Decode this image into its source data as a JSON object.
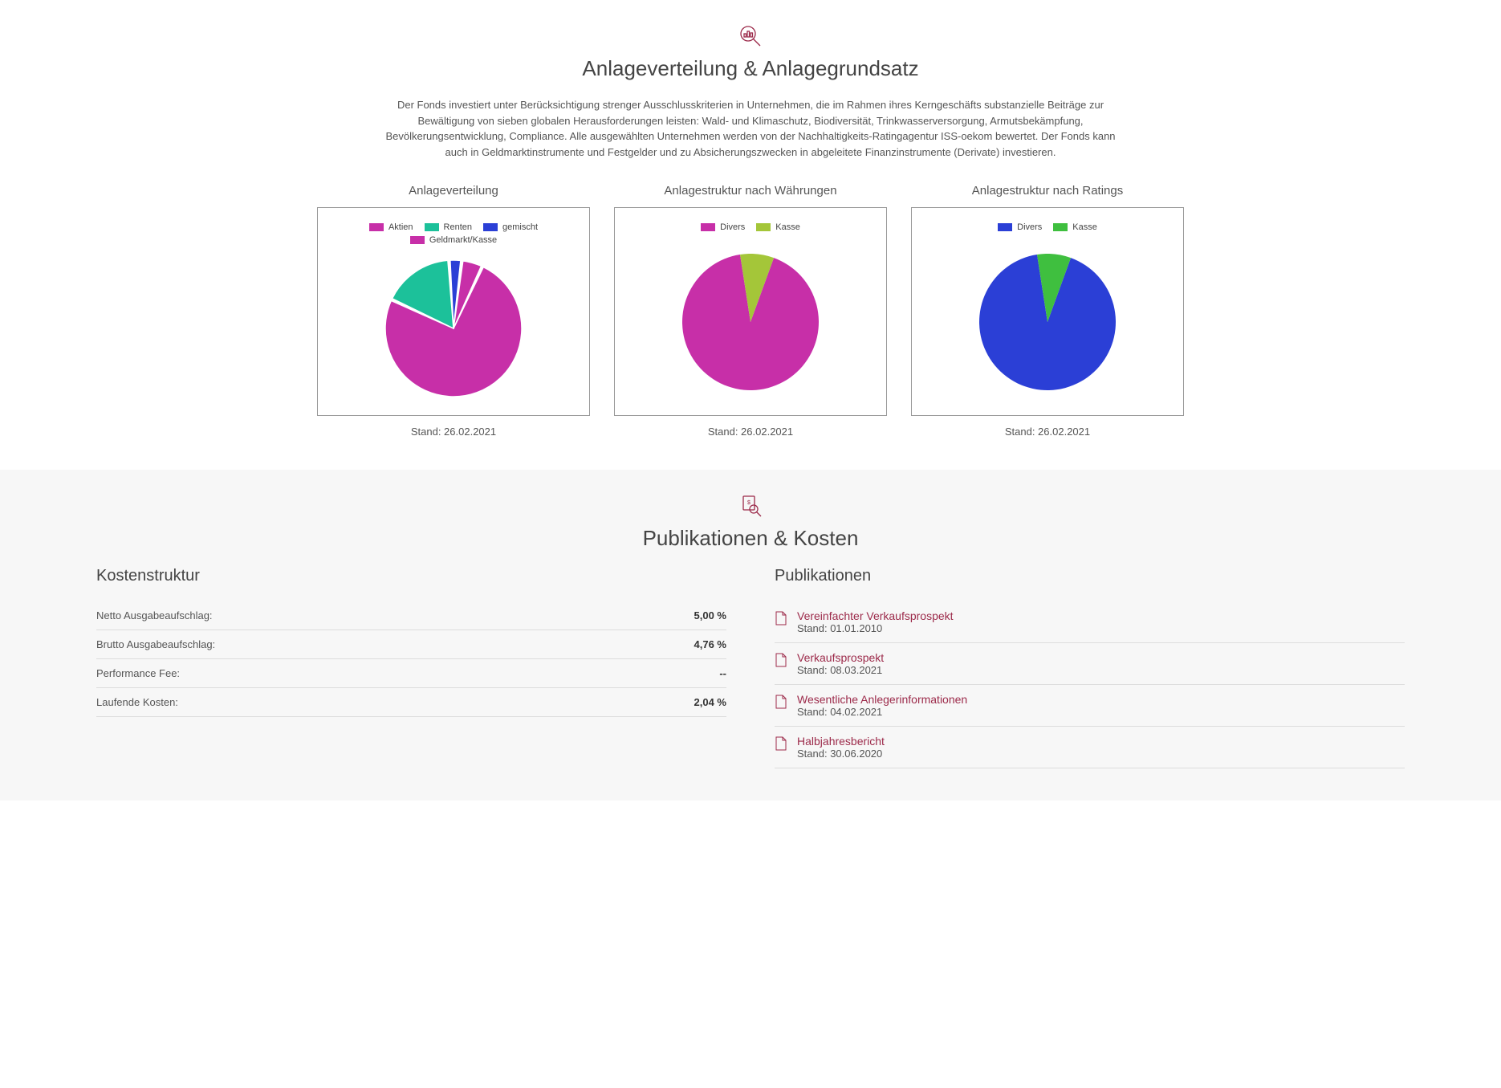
{
  "colors": {
    "accent": "#9c2a4a",
    "text": "#444444",
    "muted": "#555555",
    "border": "#999999",
    "divider": "#dddddd",
    "bg_grey": "#f7f7f7"
  },
  "section1": {
    "title": "Anlageverteilung & Anlagegrundsatz",
    "intro": "Der Fonds investiert unter Berücksichtigung strenger Ausschlusskriterien in Unternehmen, die im Rahmen ihres Kerngeschäfts substanzielle Beiträge zur Bewältigung von sieben globalen Herausforderungen leisten: Wald- und Klimaschutz, Biodiversität, Trinkwasserversorgung, Armutsbekämpfung, Bevölkerungsentwicklung, Compliance. Alle ausgewählten Unternehmen werden von der Nachhaltigkeits-Ratingagentur ISS-oekom bewertet. Der Fonds kann auch in Geldmarktinstrumente und Festgelder und zu Absicherungszwecken in abgeleitete Finanzinstrumente (Derivate) investieren."
  },
  "charts": [
    {
      "type": "pie",
      "name": "Anlageverteilung",
      "footer": "Stand: 26.02.2021",
      "gap_deg": 2,
      "slices": [
        {
          "label": "Aktien",
          "value": 75,
          "color": "#c72fa8"
        },
        {
          "label": "Renten",
          "value": 17,
          "color": "#1cc19a"
        },
        {
          "label": "gemischt",
          "value": 3,
          "color": "#2b3fd6"
        },
        {
          "label": "Geldmarkt/Kasse",
          "value": 5,
          "color": "#c72fa8"
        }
      ],
      "start_angle": -65
    },
    {
      "type": "pie",
      "name": "Anlagestruktur nach Währungen",
      "footer": "Stand: 26.02.2021",
      "gap_deg": 0,
      "slices": [
        {
          "label": "Divers",
          "value": 92,
          "color": "#c72fa8"
        },
        {
          "label": "Kasse",
          "value": 8,
          "color": "#a4c639"
        }
      ],
      "start_angle": -70
    },
    {
      "type": "pie",
      "name": "Anlagestruktur nach Ratings",
      "footer": "Stand: 26.02.2021",
      "gap_deg": 0,
      "slices": [
        {
          "label": "Divers",
          "value": 92,
          "color": "#2b3fd6"
        },
        {
          "label": "Kasse",
          "value": 8,
          "color": "#3fbf3f"
        }
      ],
      "start_angle": -70
    }
  ],
  "section2": {
    "title": "Publikationen & Kosten",
    "costs_title": "Kostenstruktur",
    "pubs_title": "Publikationen",
    "stand_prefix": "Stand: "
  },
  "costs": [
    {
      "label": "Netto Ausgabeaufschlag:",
      "value": "5,00 %"
    },
    {
      "label": "Brutto Ausgabeaufschlag:",
      "value": "4,76 %"
    },
    {
      "label": "Performance Fee:",
      "value": "--"
    },
    {
      "label": "Laufende Kosten:",
      "value": "2,04 %"
    }
  ],
  "publications": [
    {
      "title": "Vereinfachter Verkaufsprospekt",
      "date": "01.01.2010"
    },
    {
      "title": "Verkaufsprospekt",
      "date": "08.03.2021"
    },
    {
      "title": "Wesentliche Anlegerinformationen",
      "date": "04.02.2021"
    },
    {
      "title": "Halbjahresbericht",
      "date": "30.06.2020"
    }
  ]
}
